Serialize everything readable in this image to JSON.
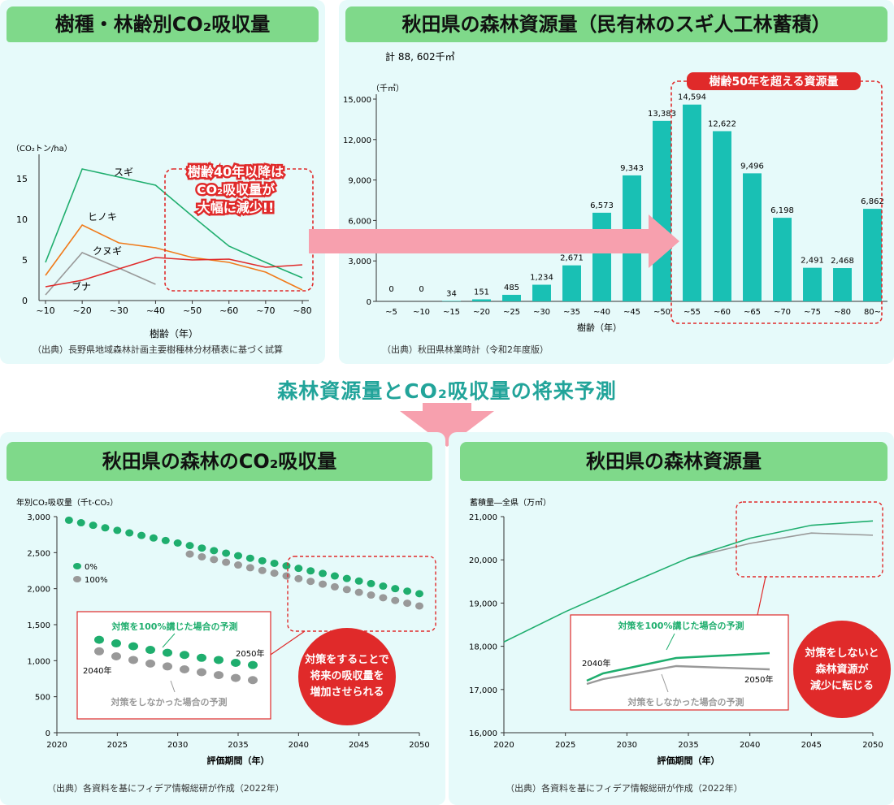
{
  "colors": {
    "green": "#1fae6e",
    "teal": "#19c0b4",
    "red": "#e02a2a",
    "pink": "#f7a0ae",
    "orange": "#f07a1a",
    "gray": "#999999"
  },
  "panels": {
    "p1_title": "樹種・林齢別CO₂吸収量",
    "p2_title": "秋田県の森林資源量（民有林のスギ人工林蓄積）",
    "p3_title": "秋田県の森林のCO₂吸収量",
    "p4_title": "秋田県の森林資源量",
    "middle_title": "森林資源量とCO₂吸収量の将来予測"
  },
  "sources": {
    "p1": "（出典）長野県地域森林計画主要樹種林分材積表に基づく試算",
    "p2": "（出典）秋田県林業時計（令和2年度版）",
    "p3": "（出典）各資料を基にフィデア情報総研が作成（2022年）",
    "p4": "（出典）各資料を基にフィデア情報総研が作成（2022年）"
  },
  "chart_data": [
    {
      "type": "line",
      "ylabel": "（CO₂トン/ha）",
      "xlabel": "樹齢（年）",
      "categories": [
        "~10",
        "~20",
        "~30",
        "~40",
        "~50",
        "~60",
        "~70",
        "~80"
      ],
      "ylim": [
        0,
        16
      ],
      "yticks": [
        0,
        5,
        10,
        15
      ],
      "series": [
        {
          "name": "スギ",
          "color": "#1fae6e",
          "values": [
            4.7,
            16.2,
            15.2,
            14.2,
            10.4,
            6.7,
            4.7,
            2.8
          ]
        },
        {
          "name": "ヒノキ",
          "color": "#f07a1a",
          "values": [
            3.1,
            9.3,
            7.1,
            6.5,
            5.3,
            4.7,
            3.5,
            1.3
          ]
        },
        {
          "name": "クヌギ",
          "color": "#999999",
          "values": [
            0.7,
            5.9,
            4.0,
            2.0,
            null,
            null,
            null,
            null
          ]
        },
        {
          "name": "ブナ",
          "color": "#e02a2a",
          "values": [
            1.7,
            2.5,
            3.9,
            5.3,
            5.0,
            5.1,
            4.1,
            4.4
          ]
        }
      ],
      "annotation": [
        "樹齢40年以降は",
        "CO₂吸収量が",
        "大幅に減少!!"
      ]
    },
    {
      "type": "bar",
      "total_label": "計 88, 602千㎥",
      "ylabel": "（千㎥）",
      "xlabel": "樹齢（年）",
      "ylim": [
        0,
        15000
      ],
      "yticks": [
        "0",
        "3,000",
        "6,000",
        "9,000",
        "12,000",
        "15,000"
      ],
      "categories": [
        "~5",
        "~10",
        "~15",
        "~20",
        "~25",
        "~30",
        "~35",
        "~40",
        "~45",
        "~50",
        "~55",
        "~60",
        "~65",
        "~70",
        "~75",
        "~80",
        "80~"
      ],
      "values": [
        0,
        0,
        34,
        151,
        485,
        1234,
        2671,
        6573,
        9343,
        13383,
        14594,
        12622,
        9496,
        6198,
        2491,
        2468,
        6862
      ],
      "value_labels": [
        "0",
        "0",
        "34",
        "151",
        "485",
        "1,234",
        "2,671",
        "6,573",
        "9,343",
        "13,383",
        "14,594",
        "12,622",
        "9,496",
        "6,198",
        "2,491",
        "2,468",
        "6,862"
      ],
      "annotation": "樹齢50年を超える資源量"
    },
    {
      "type": "scatter",
      "ylabel": "年別CO₂吸収量（千t-CO₂）",
      "xlabel": "評価期間（年）",
      "xlim": [
        2020,
        2050
      ],
      "ylim": [
        0,
        3000
      ],
      "xticks": [
        "2020",
        "2025",
        "2030",
        "2035",
        "2040",
        "2045",
        "2050"
      ],
      "yticks": [
        "0",
        "500",
        "1,000",
        "1,500",
        "2,000",
        "2,500",
        "3,000"
      ],
      "series": [
        {
          "name": "0%",
          "color": "#1fae6e",
          "x_start": 2021,
          "x_end": 2050,
          "y_start": 2950,
          "y_end": 1930
        },
        {
          "name": "100%",
          "color": "#999999",
          "x_start": 2031,
          "x_end": 2050,
          "y_start": 2480,
          "y_end": 1760
        }
      ],
      "inset": {
        "title": "対策を100%講じた場合の予測",
        "bottom_label": "対策をしなかった場合の予測",
        "start_label": "2040年",
        "end_label": "2050年"
      },
      "callout": [
        "対策をすることで",
        "将来の吸収量を",
        "増加させられる"
      ]
    },
    {
      "type": "line",
      "ylabel": "蓄積量―全県（万㎥）",
      "xlabel": "評価期間（年）",
      "xlim": [
        2020,
        2050
      ],
      "ylim": [
        16000,
        21000
      ],
      "xticks": [
        "2020",
        "2025",
        "2030",
        "2035",
        "2040",
        "2045",
        "2050"
      ],
      "yticks": [
        "16,000",
        "17,000",
        "18,000",
        "19,000",
        "20,000",
        "21,000"
      ],
      "series": [
        {
          "color": "#1fae6e",
          "x": [
            2020,
            2025,
            2030,
            2035,
            2040,
            2045,
            2050
          ],
          "y": [
            18100,
            18800,
            19430,
            20040,
            20500,
            20800,
            20900
          ]
        },
        {
          "color": "#999999",
          "x": [
            2035,
            2040,
            2045,
            2050
          ],
          "y": [
            20040,
            20380,
            20620,
            20570
          ]
        }
      ],
      "inset": {
        "title": "対策を100%講じた場合の予測",
        "bottom_label": "対策をしなかった場合の予測",
        "start_label": "2040年",
        "end_label": "2050年"
      },
      "callout": [
        "対策をしないと",
        "森林資源が",
        "減少に転じる"
      ]
    }
  ]
}
